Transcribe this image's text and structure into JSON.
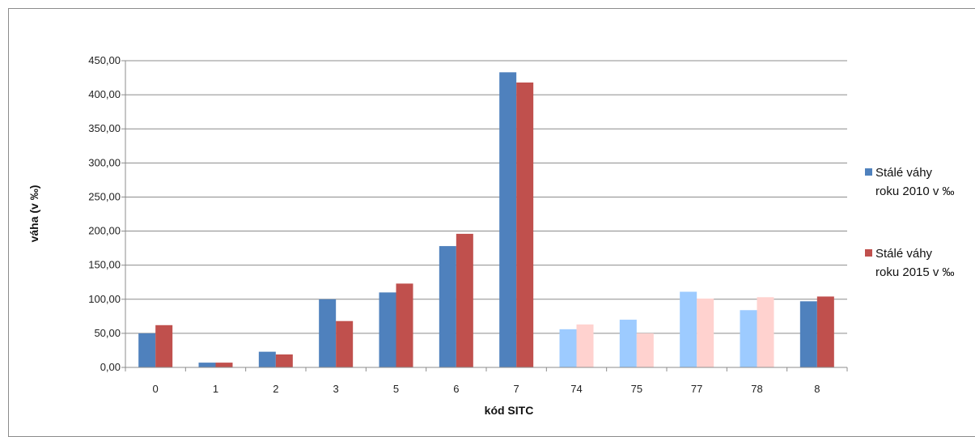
{
  "chart_data": {
    "type": "bar",
    "xlabel": "kód SITC",
    "ylabel": "váha (v ‰)",
    "ylim": [
      0,
      450
    ],
    "yticks": [
      "0,00",
      "50,00",
      "100,00",
      "150,00",
      "200,00",
      "250,00",
      "300,00",
      "350,00",
      "400,00",
      "450,00"
    ],
    "categories": [
      "0",
      "1",
      "2",
      "3",
      "5",
      "6",
      "7",
      "74",
      "75",
      "77",
      "78",
      "8"
    ],
    "highlighted_categories": [
      "74",
      "75",
      "77",
      "78"
    ],
    "grid": true,
    "legend_position": "right",
    "series": [
      {
        "name": "Stálé váhy roku 2010 v ‰",
        "legend_lines": [
          "Stálé váhy",
          "roku 2010 v ‰"
        ],
        "color": "#4f81bd",
        "light_color": "#9dcbff",
        "values": [
          50,
          7,
          23,
          100,
          110,
          178,
          433,
          56,
          70,
          111,
          84,
          97
        ]
      },
      {
        "name": "Stálé váhy roku 2015 v ‰",
        "legend_lines": [
          "Stálé váhy",
          "roku 2015 v ‰"
        ],
        "color": "#c0504d",
        "light_color": "#ffd2cf",
        "values": [
          62,
          7,
          19,
          68,
          123,
          196,
          418,
          63,
          50,
          101,
          103,
          104
        ]
      }
    ]
  }
}
